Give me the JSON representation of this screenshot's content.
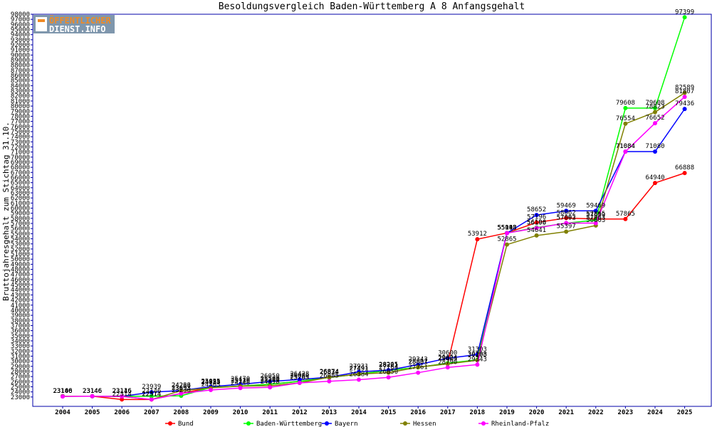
{
  "logo": {
    "line1": "ÖFFENTLICHER",
    "line2": "DIENST.INFO"
  },
  "chart_data": {
    "type": "line",
    "title": "Besoldungsvergleich Baden-Württemberg A 8 Anfangsgehalt",
    "xlabel": "",
    "ylabel": "Bruttojahresgehalt zum Stichtag 31.10.",
    "ylim": [
      22000,
      98000
    ],
    "ytick_step": 1000,
    "grid": false,
    "legend_position": "bottom",
    "categories": [
      "2004",
      "2005",
      "2006",
      "2007",
      "2008",
      "2009",
      "2010",
      "2011",
      "2012",
      "2013",
      "2014",
      "2015",
      "2016",
      "2017",
      "2018",
      "2019",
      "2020",
      "2021",
      "2022",
      "2023",
      "2024",
      "2025"
    ],
    "series": [
      {
        "name": "Bund",
        "color": "#ff0000",
        "values": [
          23146,
          23146,
          22514,
          22514,
          23693,
          24853,
          25136,
          25500,
          26080,
          26834,
          27491,
          28221,
          28807,
          29624,
          53912,
          55143,
          57196,
          58062,
          57865,
          57865,
          64940,
          66888
        ]
      },
      {
        "name": "Baden-Württemberg",
        "color": "#00ff00",
        "values": [
          23146,
          23146,
          23146,
          23146,
          23236,
          24853,
          25136,
          25500,
          26080,
          26834,
          27491,
          28221,
          28807,
          29624,
          30288,
          55143,
          56196,
          57063,
          57659,
          79608,
          79608,
          97399
        ]
      },
      {
        "name": "Bayern",
        "color": "#0000ff",
        "values": [
          23146,
          23146,
          23116,
          23939,
          24263,
          25025,
          25470,
          26050,
          26428,
          26874,
          27931,
          28265,
          29343,
          30600,
          31303,
          55098,
          58652,
          59469,
          59469,
          71084,
          71080,
          79436
        ]
      },
      {
        "name": "Hessen",
        "color": "#808000",
        "values": [
          23146,
          23146,
          23116,
          22514,
          24236,
          24785,
          25120,
          25200,
          25765,
          26874,
          27491,
          27764,
          28831,
          29483,
          30193,
          52865,
          54641,
          55397,
          56603,
          76554,
          78823,
          82589
        ]
      },
      {
        "name": "Rheinland-Pfalz",
        "color": "#ff00ff",
        "values": [
          23100,
          23146,
          23116,
          22514,
          23693,
          24363,
          24746,
          24898,
          25765,
          26085,
          26384,
          26850,
          27761,
          28790,
          29343,
          55118,
          56108,
          57092,
          57063,
          71084,
          76652,
          81807
        ]
      }
    ]
  }
}
